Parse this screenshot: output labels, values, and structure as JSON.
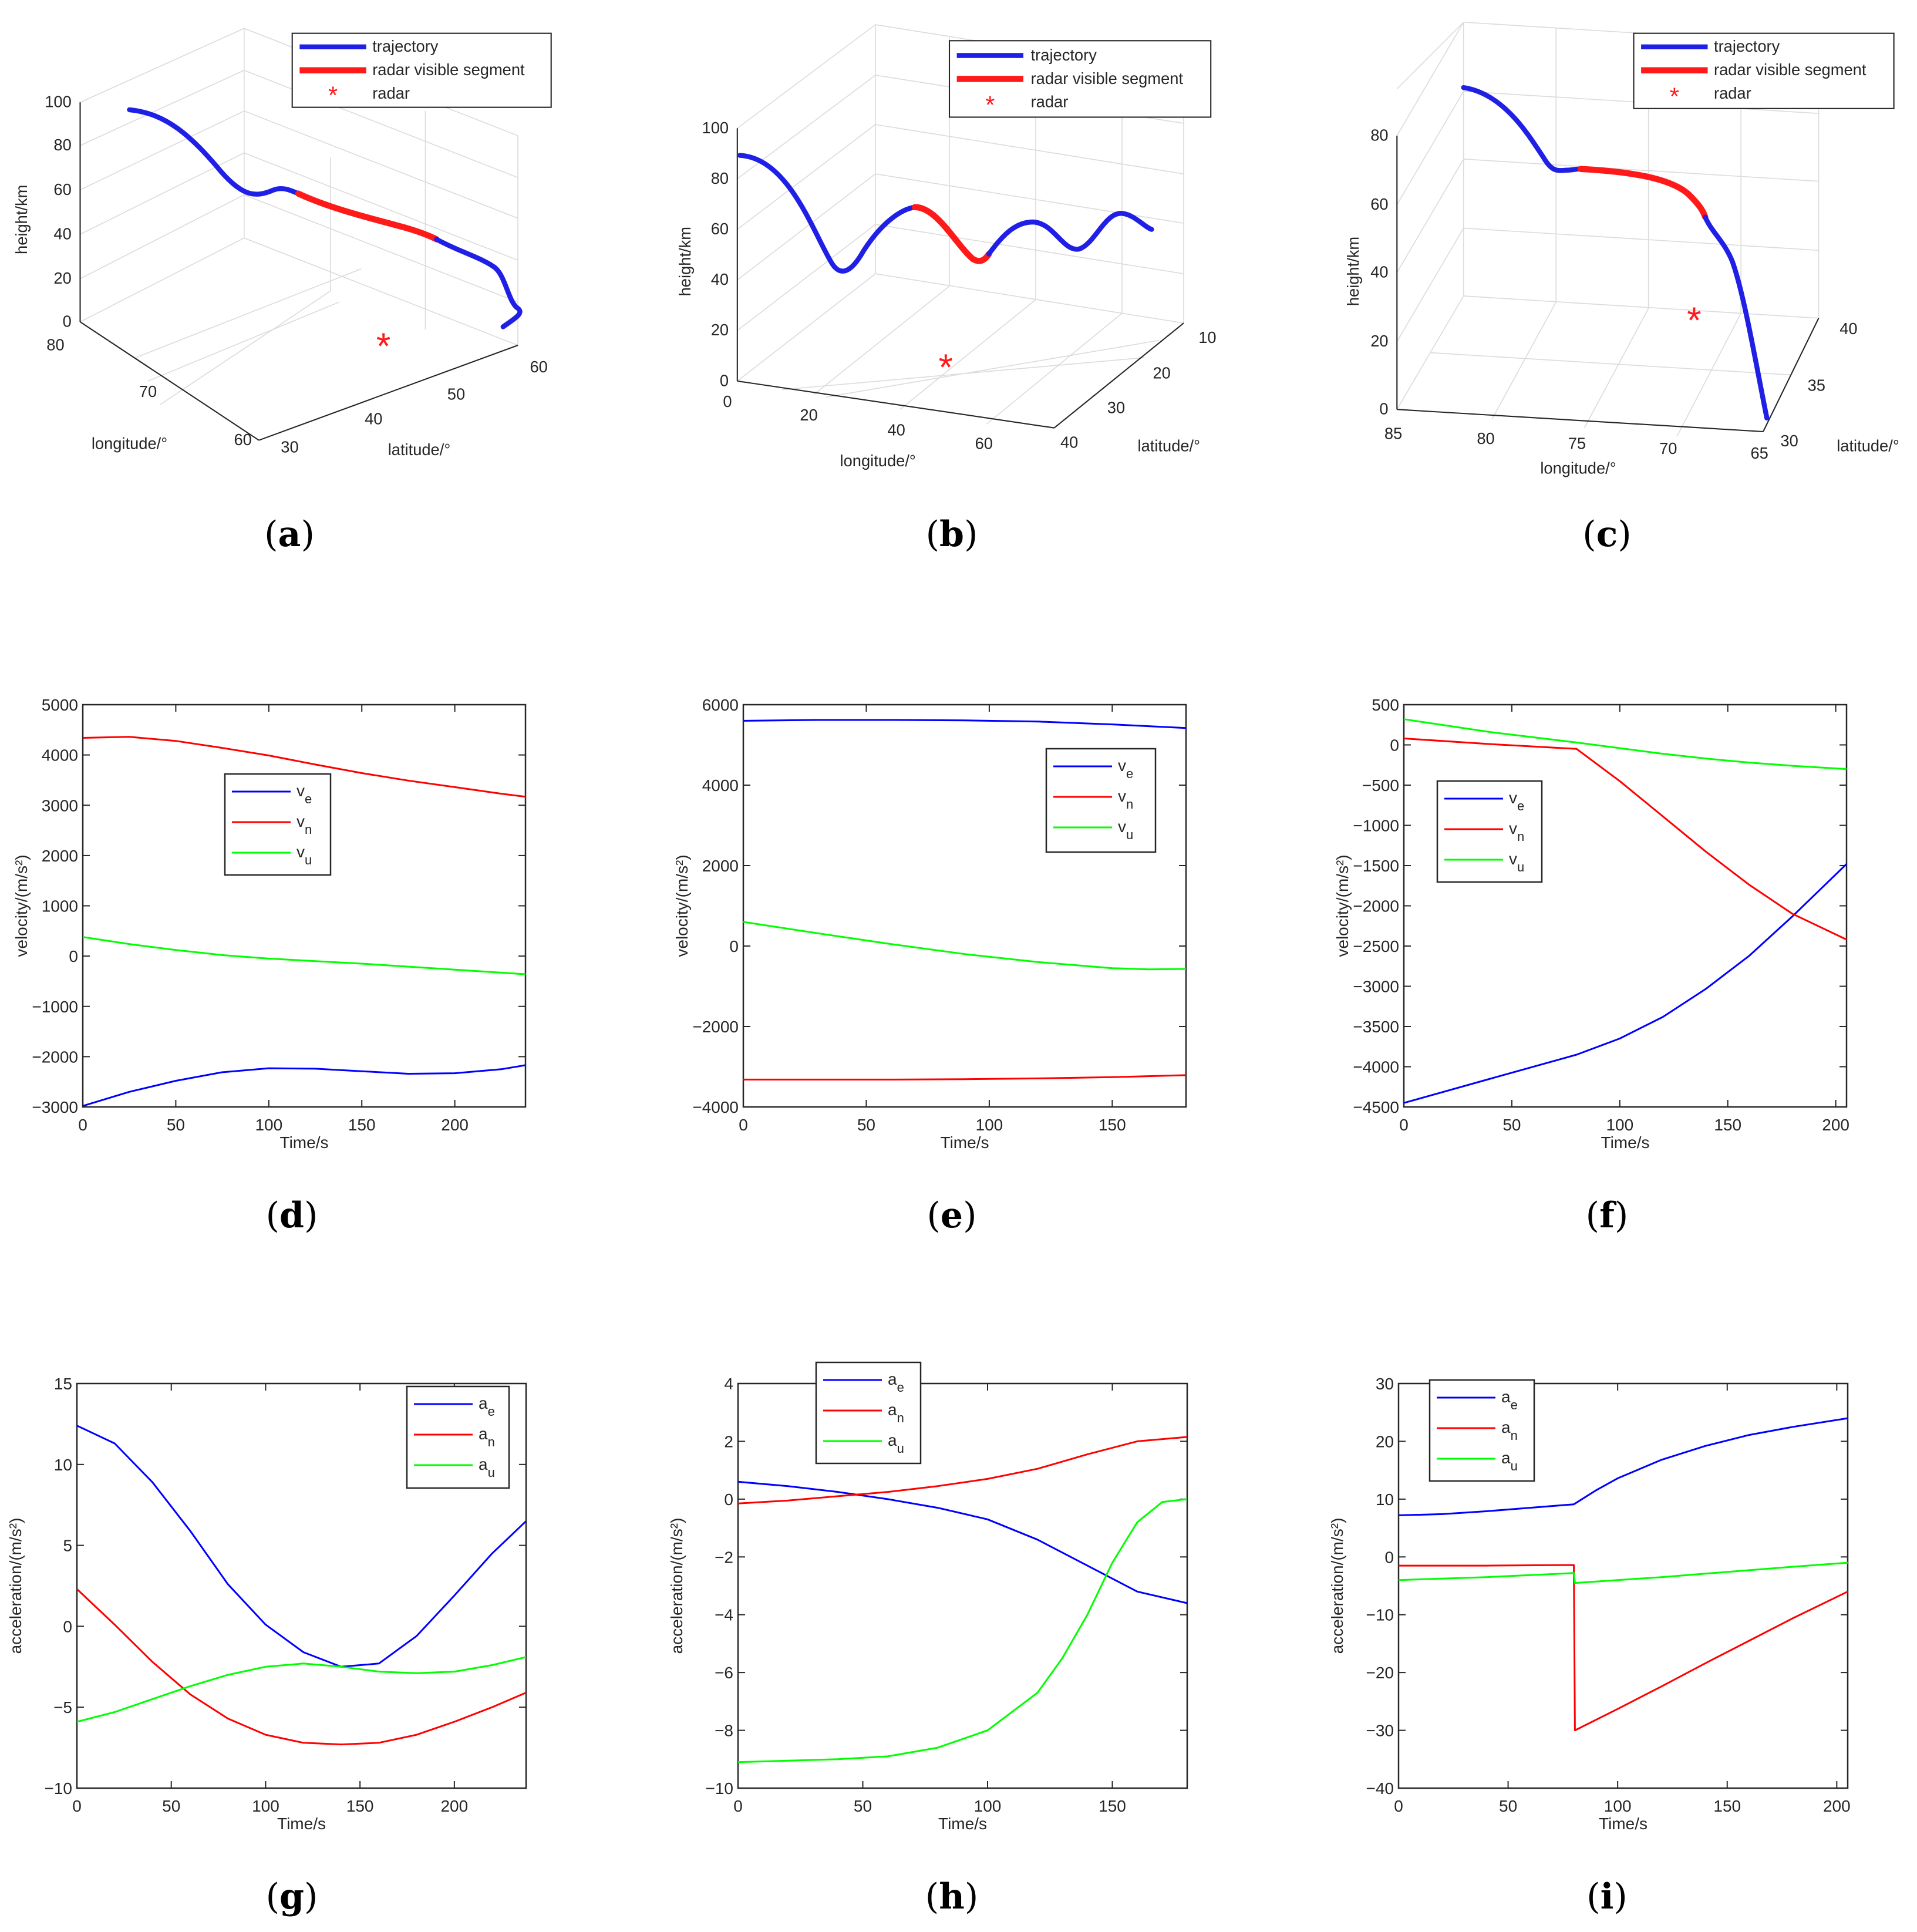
{
  "figure": {
    "captions": [
      "a",
      "b",
      "c",
      "d",
      "e",
      "f",
      "g",
      "h",
      "i"
    ]
  },
  "legend3d": {
    "trajectory": "trajectory",
    "visible": "radar visible segment",
    "radar": "radar",
    "radar_marker": "*"
  },
  "colors": {
    "blue": "#0000ff",
    "red": "#ff0000",
    "green": "#00ff00",
    "trajectory": "#1f1fe6",
    "visible": "#ff1a1a"
  },
  "chart_data": [
    {
      "id": "a",
      "type": "line3d",
      "zlabel": "height/km",
      "xlabel": "longitude/°",
      "ylabel": "latitude/°",
      "zticks": [
        "0",
        "20",
        "40",
        "60",
        "80",
        "100"
      ],
      "xticks": [
        "80",
        "70",
        "60"
      ],
      "yticks": [
        "30",
        "40",
        "50",
        "60"
      ],
      "legend": [
        "trajectory",
        "radar visible segment",
        "radar"
      ]
    },
    {
      "id": "b",
      "type": "line3d",
      "zlabel": "height/km",
      "xlabel": "longitude/°",
      "ylabel": "latitude/°",
      "zticks": [
        "0",
        "20",
        "40",
        "60",
        "80",
        "100"
      ],
      "xticks": [
        "0",
        "20",
        "40",
        "60"
      ],
      "yticks": [
        "10",
        "20",
        "30",
        "40"
      ],
      "legend": [
        "trajectory",
        "radar visible segment",
        "radar"
      ]
    },
    {
      "id": "c",
      "type": "line3d",
      "zlabel": "height/km",
      "xlabel": "longitude/°",
      "ylabel": "latitude/°",
      "zticks": [
        "0",
        "20",
        "40",
        "60",
        "80"
      ],
      "xticks": [
        "85",
        "80",
        "75",
        "70",
        "65"
      ],
      "yticks": [
        "30",
        "35",
        "40"
      ],
      "legend": [
        "trajectory",
        "radar visible segment",
        "radar"
      ]
    },
    {
      "id": "d",
      "type": "line",
      "xlabel": "Time/s",
      "ylabel": "velocity/(m/s²)",
      "xlim": [
        0,
        238
      ],
      "ylim": [
        -3000,
        5000
      ],
      "xticks": [
        0,
        50,
        100,
        150,
        200
      ],
      "yticks": [
        -3000,
        -2000,
        -1000,
        0,
        1000,
        2000,
        3000,
        4000,
        5000
      ],
      "legend": {
        "labels": [
          "v",
          "v",
          "v"
        ],
        "subs": [
          "e",
          "n",
          "u"
        ]
      },
      "series": [
        {
          "name": "v_e",
          "color": "blue",
          "x": [
            0,
            25,
            50,
            75,
            100,
            125,
            150,
            175,
            200,
            225,
            238
          ],
          "y": [
            -2980,
            -2700,
            -2480,
            -2310,
            -2230,
            -2240,
            -2290,
            -2340,
            -2330,
            -2250,
            -2170
          ]
        },
        {
          "name": "v_n",
          "color": "red",
          "x": [
            0,
            25,
            50,
            75,
            100,
            125,
            150,
            175,
            200,
            225,
            238
          ],
          "y": [
            4340,
            4360,
            4280,
            4140,
            3990,
            3810,
            3640,
            3490,
            3360,
            3230,
            3170
          ]
        },
        {
          "name": "v_u",
          "color": "green",
          "x": [
            0,
            25,
            50,
            75,
            100,
            125,
            150,
            175,
            200,
            225,
            238
          ],
          "y": [
            380,
            240,
            120,
            20,
            -50,
            -100,
            -150,
            -210,
            -270,
            -330,
            -360
          ]
        }
      ]
    },
    {
      "id": "e",
      "type": "line",
      "xlabel": "Time/s",
      "ylabel": "velocity/(m/s²)",
      "xlim": [
        0,
        180
      ],
      "ylim": [
        -4000,
        6000
      ],
      "xticks": [
        0,
        50,
        100,
        150
      ],
      "yticks": [
        -4000,
        -2000,
        0,
        2000,
        4000,
        6000
      ],
      "legend": {
        "labels": [
          "v",
          "v",
          "v"
        ],
        "subs": [
          "e",
          "n",
          "u"
        ]
      },
      "series": [
        {
          "name": "v_e",
          "color": "blue",
          "x": [
            0,
            30,
            60,
            90,
            120,
            150,
            180
          ],
          "y": [
            5600,
            5620,
            5620,
            5610,
            5580,
            5510,
            5420
          ]
        },
        {
          "name": "v_n",
          "color": "red",
          "x": [
            0,
            30,
            60,
            90,
            120,
            150,
            180
          ],
          "y": [
            -3320,
            -3320,
            -3320,
            -3310,
            -3290,
            -3260,
            -3210
          ]
        },
        {
          "name": "v_u",
          "color": "green",
          "x": [
            0,
            30,
            60,
            90,
            120,
            150,
            165,
            180
          ],
          "y": [
            600,
            320,
            50,
            -200,
            -400,
            -550,
            -580,
            -570
          ]
        }
      ]
    },
    {
      "id": "f",
      "type": "line",
      "xlabel": "Time/s",
      "ylabel": "velocity/(m/s²)",
      "xlim": [
        0,
        205
      ],
      "ylim": [
        -4500,
        500
      ],
      "xticks": [
        0,
        50,
        100,
        150,
        200
      ],
      "yticks": [
        -4500,
        -4000,
        -3500,
        -3000,
        -2500,
        -2000,
        -1500,
        -1000,
        -500,
        0,
        500
      ],
      "legend": {
        "labels": [
          "v",
          "v",
          "v"
        ],
        "subs": [
          "e",
          "n",
          "u"
        ]
      },
      "series": [
        {
          "name": "v_e",
          "color": "blue",
          "x": [
            0,
            40,
            80,
            100,
            120,
            140,
            160,
            180,
            205
          ],
          "y": [
            -4450,
            -4150,
            -3850,
            -3650,
            -3380,
            -3030,
            -2620,
            -2130,
            -1480
          ]
        },
        {
          "name": "v_n",
          "color": "red",
          "x": [
            0,
            40,
            80,
            100,
            120,
            140,
            160,
            180,
            205
          ],
          "y": [
            80,
            10,
            -50,
            -450,
            -890,
            -1330,
            -1740,
            -2100,
            -2420
          ]
        },
        {
          "name": "v_u",
          "color": "green",
          "x": [
            0,
            40,
            80,
            100,
            120,
            140,
            160,
            180,
            205
          ],
          "y": [
            320,
            160,
            30,
            -40,
            -110,
            -170,
            -220,
            -260,
            -300
          ]
        }
      ]
    },
    {
      "id": "g",
      "type": "line",
      "xlabel": "Time/s",
      "ylabel": "acceleration/(m/s²)",
      "xlim": [
        0,
        238
      ],
      "ylim": [
        -10,
        15
      ],
      "xticks": [
        0,
        50,
        100,
        150,
        200
      ],
      "yticks": [
        -10,
        -5,
        0,
        5,
        10,
        15
      ],
      "legend": {
        "labels": [
          "a",
          "a",
          "a"
        ],
        "subs": [
          "e",
          "n",
          "u"
        ]
      },
      "series": [
        {
          "name": "a_e",
          "color": "blue",
          "x": [
            0,
            20,
            40,
            60,
            80,
            100,
            120,
            140,
            160,
            180,
            200,
            220,
            238
          ],
          "y": [
            12.4,
            11.3,
            8.9,
            5.9,
            2.6,
            0.1,
            -1.6,
            -2.5,
            -2.3,
            -0.6,
            1.9,
            4.5,
            6.5
          ]
        },
        {
          "name": "a_n",
          "color": "red",
          "x": [
            0,
            20,
            40,
            60,
            80,
            100,
            120,
            140,
            160,
            180,
            200,
            220,
            238
          ],
          "y": [
            2.3,
            0.1,
            -2.2,
            -4.2,
            -5.7,
            -6.7,
            -7.2,
            -7.3,
            -7.2,
            -6.7,
            -5.9,
            -5.0,
            -4.1
          ]
        },
        {
          "name": "a_u",
          "color": "green",
          "x": [
            0,
            20,
            40,
            60,
            80,
            100,
            120,
            140,
            160,
            180,
            200,
            220,
            238
          ],
          "y": [
            -5.9,
            -5.3,
            -4.5,
            -3.7,
            -3.0,
            -2.5,
            -2.3,
            -2.5,
            -2.8,
            -2.9,
            -2.8,
            -2.4,
            -1.9
          ]
        }
      ]
    },
    {
      "id": "h",
      "type": "line",
      "xlabel": "Time/s",
      "ylabel": "acceleration/(m/s²)",
      "xlim": [
        0,
        180
      ],
      "ylim": [
        -10,
        4
      ],
      "xticks": [
        0,
        50,
        100,
        150
      ],
      "yticks": [
        -10,
        -8,
        -6,
        -4,
        -2,
        0,
        2,
        4
      ],
      "legend": {
        "labels": [
          "a",
          "a",
          "a"
        ],
        "subs": [
          "e",
          "n",
          "u"
        ]
      },
      "series": [
        {
          "name": "a_e",
          "color": "blue",
          "x": [
            0,
            20,
            40,
            60,
            80,
            100,
            120,
            140,
            160,
            180
          ],
          "y": [
            0.6,
            0.45,
            0.25,
            0.0,
            -0.3,
            -0.7,
            -1.4,
            -2.3,
            -3.2,
            -3.6
          ]
        },
        {
          "name": "a_n",
          "color": "red",
          "x": [
            0,
            20,
            40,
            60,
            80,
            100,
            120,
            140,
            160,
            180
          ],
          "y": [
            -0.15,
            -0.05,
            0.1,
            0.25,
            0.45,
            0.7,
            1.05,
            1.55,
            2.0,
            2.15
          ]
        },
        {
          "name": "a_u",
          "color": "green",
          "x": [
            0,
            20,
            40,
            60,
            80,
            100,
            120,
            130,
            140,
            150,
            160,
            170,
            180
          ],
          "y": [
            -9.1,
            -9.05,
            -9.0,
            -8.9,
            -8.6,
            -8.0,
            -6.7,
            -5.5,
            -4.0,
            -2.2,
            -0.8,
            -0.1,
            0.0
          ]
        }
      ]
    },
    {
      "id": "i",
      "type": "line",
      "xlabel": "Time/s",
      "ylabel": "acceleration/(m/s²)",
      "xlim": [
        0,
        205
      ],
      "ylim": [
        -40,
        30
      ],
      "xticks": [
        0,
        50,
        100,
        150,
        200
      ],
      "yticks": [
        -40,
        -30,
        -20,
        -10,
        0,
        10,
        20,
        30
      ],
      "legend": {
        "labels": [
          "a",
          "a",
          "a"
        ],
        "subs": [
          "e",
          "n",
          "u"
        ]
      },
      "series": [
        {
          "name": "a_e",
          "color": "blue",
          "x": [
            0,
            20,
            40,
            60,
            80,
            90,
            100,
            120,
            140,
            160,
            180,
            205
          ],
          "y": [
            7.2,
            7.4,
            7.9,
            8.5,
            9.1,
            11.5,
            13.6,
            16.8,
            19.2,
            21.1,
            22.5,
            24.0
          ]
        },
        {
          "name": "a_n",
          "color": "red",
          "x": [
            0,
            40,
            80,
            80.5,
            100,
            120,
            140,
            160,
            180,
            205
          ],
          "y": [
            -1.5,
            -1.5,
            -1.4,
            -30.0,
            -26.3,
            -22.4,
            -18.4,
            -14.5,
            -10.6,
            -6.0
          ]
        },
        {
          "name": "a_u",
          "color": "green",
          "x": [
            0,
            40,
            80,
            80.5,
            100,
            120,
            140,
            160,
            180,
            205
          ],
          "y": [
            -4.0,
            -3.5,
            -2.8,
            -4.5,
            -4.0,
            -3.5,
            -2.9,
            -2.3,
            -1.7,
            -1.0
          ]
        }
      ]
    }
  ]
}
